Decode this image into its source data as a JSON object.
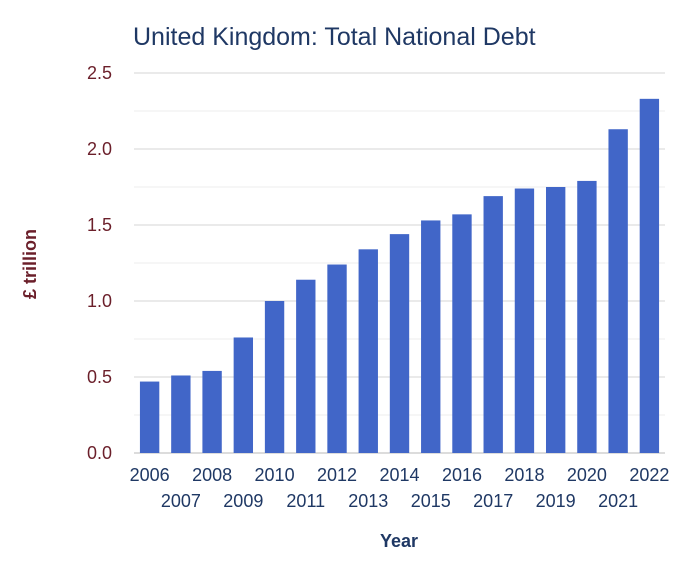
{
  "chart_data": {
    "type": "bar",
    "title": "United Kingdom: Total National Debt",
    "xlabel": "Year",
    "ylabel": "£ trillion",
    "categories": [
      "2006",
      "2007",
      "2008",
      "2009",
      "2010",
      "2011",
      "2012",
      "2013",
      "2014",
      "2015",
      "2016",
      "2017",
      "2018",
      "2019",
      "2020",
      "2021",
      "2022"
    ],
    "values": [
      0.47,
      0.51,
      0.54,
      0.76,
      1.0,
      1.14,
      1.24,
      1.34,
      1.44,
      1.53,
      1.57,
      1.69,
      1.74,
      1.75,
      1.79,
      2.13,
      2.33
    ],
    "ylim": [
      0,
      2.5
    ],
    "yticks": [
      "0.0",
      "0.5",
      "1.0",
      "1.5",
      "2.0",
      "2.5"
    ],
    "grid": true,
    "bar_color": "#4166c8",
    "title_color": "#1f3864",
    "ytick_color": "#6b1f2a"
  }
}
